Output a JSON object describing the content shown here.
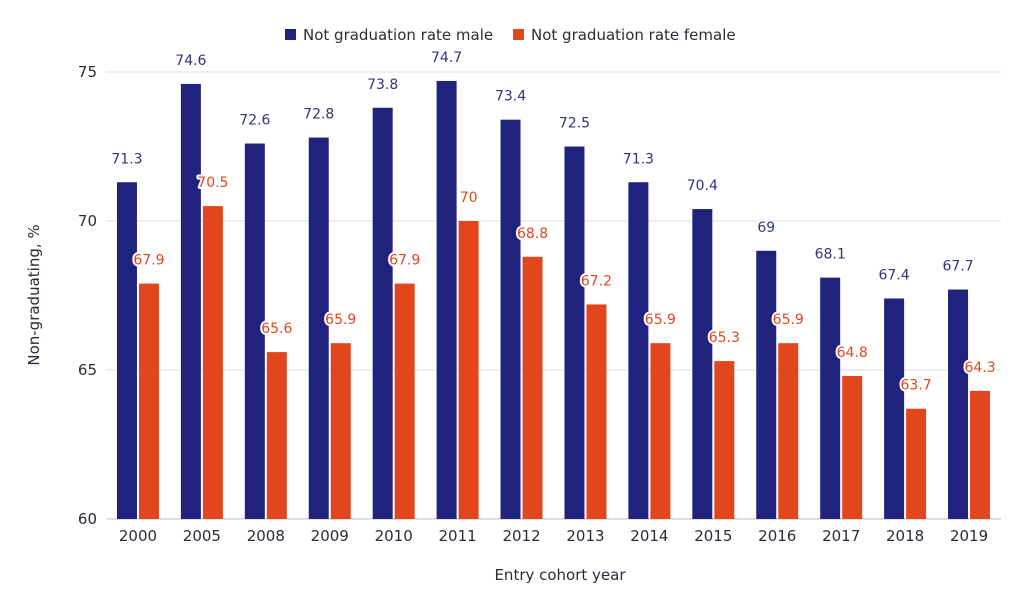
{
  "chart_data": {
    "type": "bar",
    "title": "",
    "xlabel": "Entry cohort year",
    "ylabel": "Non-graduating, %",
    "ylim": [
      60,
      75
    ],
    "yticks": [
      60,
      65,
      70,
      75
    ],
    "grid": true,
    "legend_position": "top-center",
    "categories": [
      "2000",
      "2005",
      "2008",
      "2009",
      "2010",
      "2011",
      "2012",
      "2013",
      "2014",
      "2015",
      "2016",
      "2017",
      "2018",
      "2019"
    ],
    "series": [
      {
        "name": "Not graduation rate male",
        "color": "#1f237e",
        "label_color": "#2f3579",
        "values": [
          71.3,
          74.6,
          72.6,
          72.8,
          73.8,
          74.7,
          73.4,
          72.5,
          71.3,
          70.4,
          69,
          68.1,
          67.4,
          67.7
        ]
      },
      {
        "name": "Not graduation rate female",
        "color": "#e2461c",
        "label_color": "#e2461c",
        "values": [
          67.9,
          70.5,
          65.6,
          65.9,
          67.9,
          70,
          68.8,
          67.2,
          65.9,
          65.3,
          65.9,
          64.8,
          63.7,
          64.3
        ]
      }
    ]
  }
}
